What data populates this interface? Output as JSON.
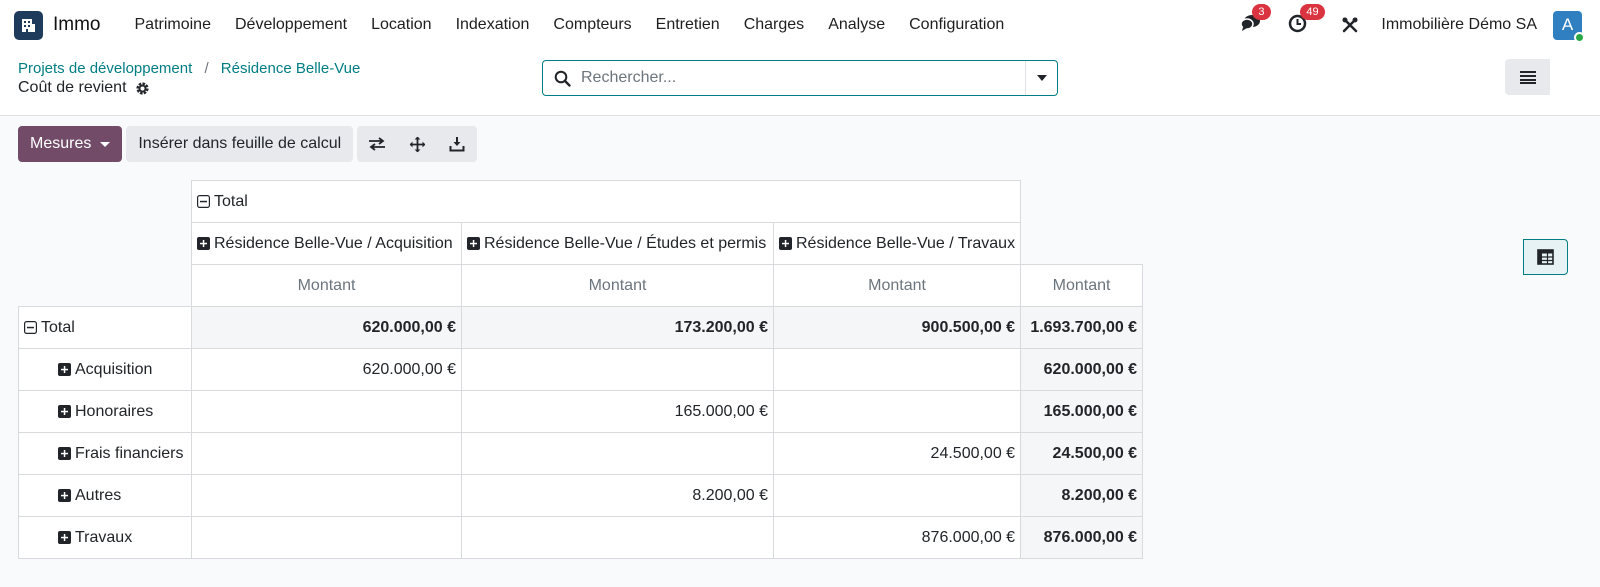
{
  "navbar": {
    "app_name": "Immo",
    "menu": [
      "Patrimoine",
      "Développement",
      "Location",
      "Indexation",
      "Compteurs",
      "Entretien",
      "Charges",
      "Analyse",
      "Configuration"
    ],
    "messages_count": "3",
    "activities_count": "49",
    "company": "Immobilière Démo SA",
    "avatar_letter": "A"
  },
  "breadcrumb": {
    "parent": "Projets de développement",
    "current": "Résidence Belle-Vue",
    "page_title": "Coût de revient"
  },
  "search": {
    "placeholder": "Rechercher..."
  },
  "toolbar": {
    "measures": "Mesures",
    "insert": "Insérer dans feuille de calcul"
  },
  "pivot": {
    "col_total": "Total",
    "col_groups": [
      "Résidence Belle-Vue / Acquisition",
      "Résidence Belle-Vue / Études et permis",
      "Résidence Belle-Vue / Travaux"
    ],
    "measure": "Montant",
    "row_total_label": "Total",
    "total_values": [
      "620.000,00 €",
      "173.200,00 €",
      "900.500,00 €",
      "1.693.700,00 €"
    ],
    "rows": [
      {
        "label": "Acquisition",
        "values": [
          "620.000,00 €",
          "",
          "",
          "620.000,00 €"
        ]
      },
      {
        "label": "Honoraires",
        "values": [
          "",
          "165.000,00 €",
          "",
          "165.000,00 €"
        ]
      },
      {
        "label": "Frais financiers",
        "values": [
          "",
          "",
          "24.500,00 €",
          "24.500,00 €"
        ]
      },
      {
        "label": "Autres",
        "values": [
          "",
          "8.200,00 €",
          "",
          "8.200,00 €"
        ]
      },
      {
        "label": "Travaux",
        "values": [
          "",
          "",
          "876.000,00 €",
          "876.000,00 €"
        ]
      }
    ]
  }
}
